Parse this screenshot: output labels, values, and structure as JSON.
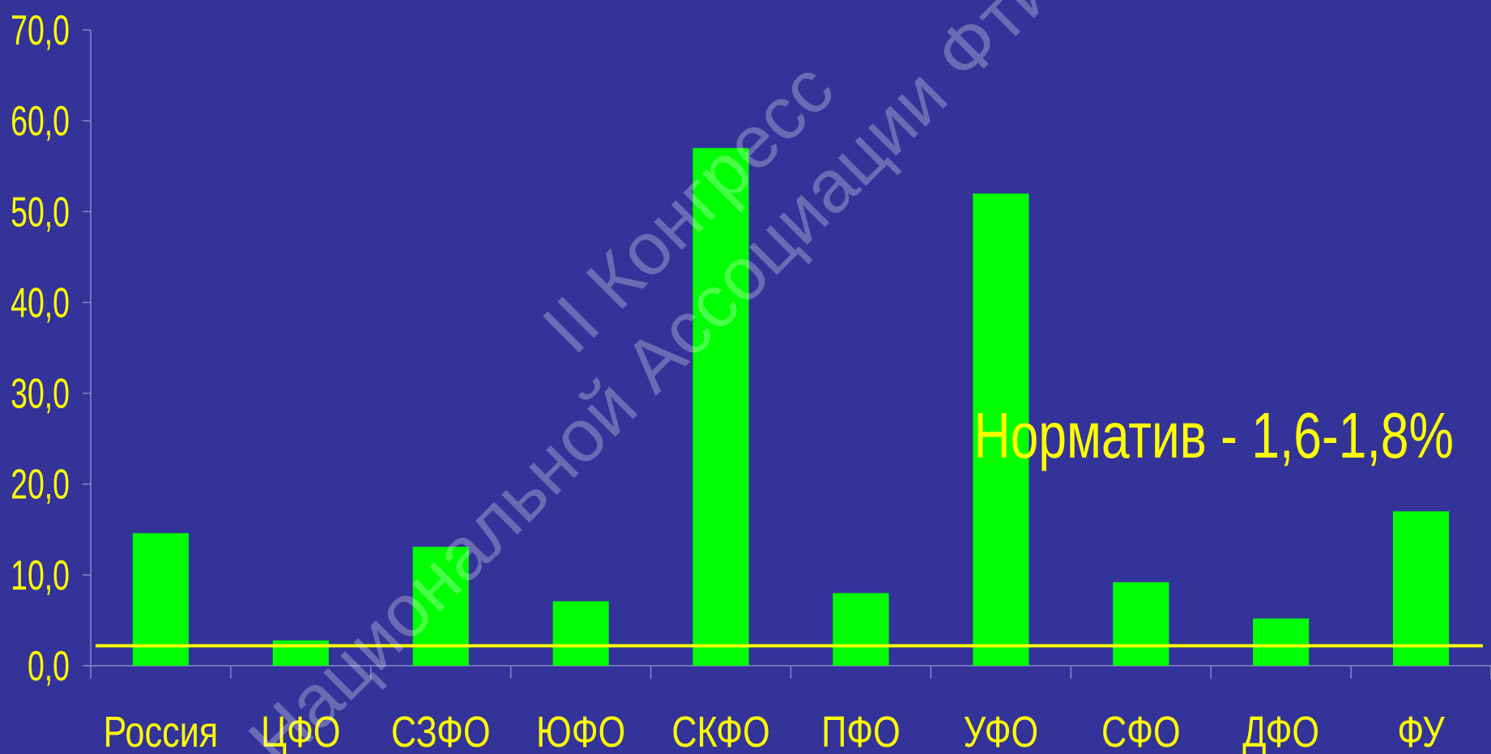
{
  "chart_data": {
    "type": "bar",
    "title": "",
    "xlabel": "",
    "ylabel": "",
    "categories": [
      "Россия",
      "ЦФО",
      "СЗФО",
      "ЮФО",
      "СКФО",
      "ПФО",
      "УФО",
      "СФО",
      "ДФО",
      "ФУ"
    ],
    "values": [
      14.6,
      2.8,
      13.1,
      7.1,
      57.0,
      8.0,
      52.0,
      9.2,
      5.2,
      17.0
    ],
    "ylim": [
      0,
      70
    ],
    "yticks": [
      "0,0",
      "10,0",
      "20,0",
      "30,0",
      "40,0",
      "50,0",
      "60,0",
      "70,0"
    ],
    "reference_line": {
      "value": 2.2
    },
    "annotation": "Норматив - 1,6-1,8%",
    "grid": false,
    "legend": "none"
  },
  "colors": {
    "background": "#333399",
    "bar": "#00ff00",
    "reference_line": "#ffff00",
    "text": "#ffff00",
    "axis": "#8888cc"
  },
  "watermark": {
    "line1": "II Конгресс",
    "line2": "Национальной Ассоциации Фтизиатров"
  }
}
